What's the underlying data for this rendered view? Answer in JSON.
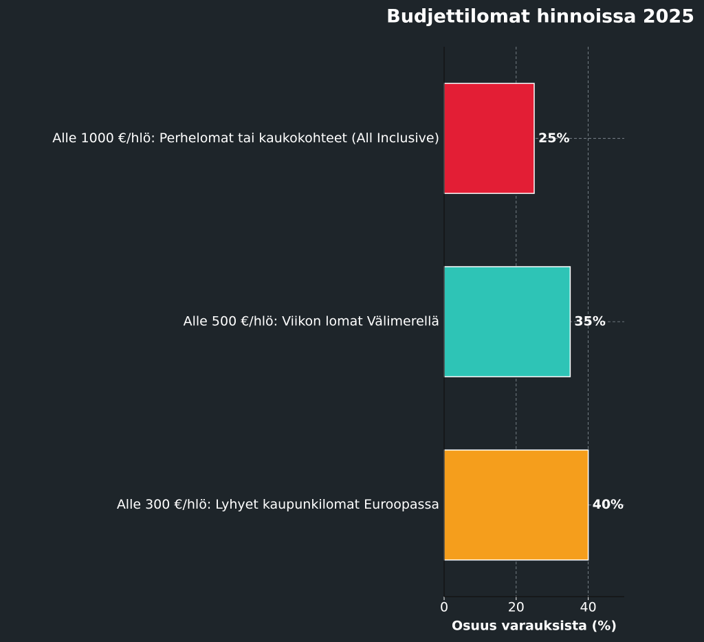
{
  "chart_data": {
    "type": "barh",
    "title": "Budjettilomat hinnoissa 2025",
    "xlabel": "Osuus varauksista (%)",
    "categories": [
      "Alle 1000 €/hlö: Perhelomat tai kaukokohteet (All Inclusive)",
      "Alle 500 €/hlö: Viikon lomat Välimerellä",
      "Alle 300 €/hlö: Lyhyet kaupunkilomat Euroopassa"
    ],
    "values": [
      25,
      35,
      40
    ],
    "value_labels": [
      "25%",
      "35%",
      "40%"
    ],
    "colors": [
      "#e31e35",
      "#2ec4b6",
      "#f59e1c"
    ],
    "xlim": [
      0,
      50
    ],
    "xticks": [
      0,
      20,
      40
    ],
    "grid": true
  }
}
